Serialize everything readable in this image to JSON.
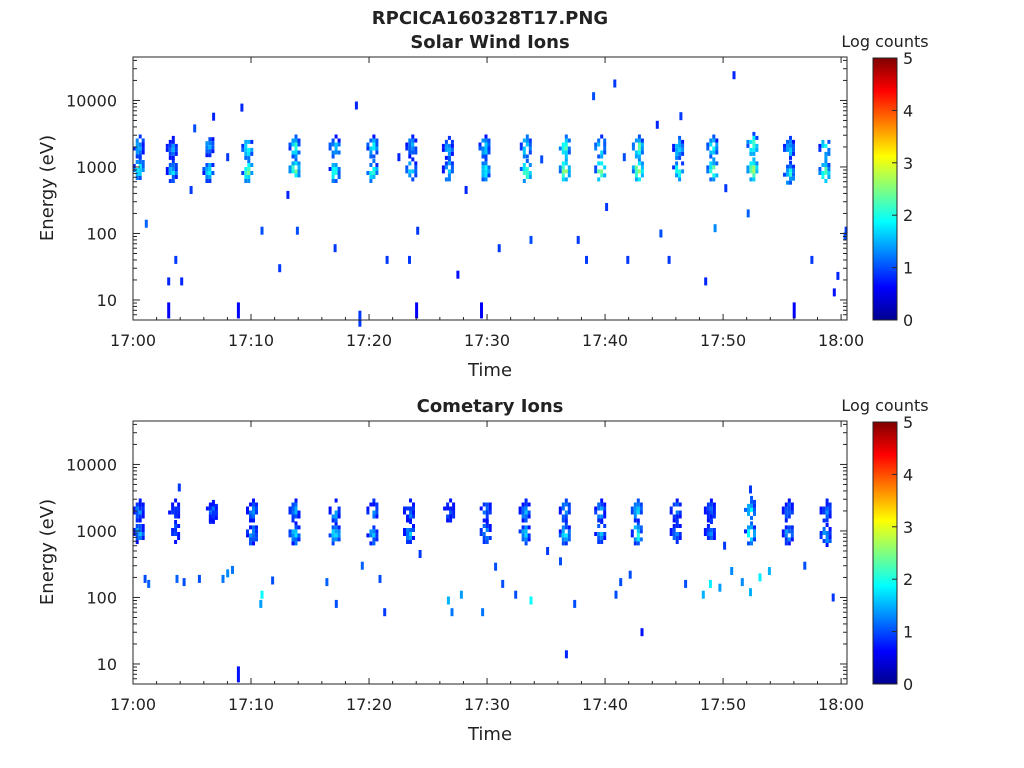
{
  "figure_title": "RPCICA160328T17.PNG",
  "chart_data": [
    {
      "type": "heatmap",
      "title": "Solar Wind Ions",
      "xlabel": "Time",
      "ylabel": "Energy (eV)",
      "y_scale": "log",
      "ylim": [
        5,
        45000
      ],
      "x_minutes_range": [
        0,
        60.5
      ],
      "x_tick_labels": [
        "17:00",
        "17:10",
        "17:20",
        "17:30",
        "17:40",
        "17:50",
        "18:00"
      ],
      "y_tick_labels": [
        "10",
        "100",
        "1000",
        "10000"
      ],
      "colorbar": {
        "label": "Log counts",
        "range": [
          0,
          5
        ],
        "tick_labels": [
          "0",
          "1",
          "2",
          "3",
          "4",
          "5"
        ],
        "colormap": "jet"
      },
      "clusters": [
        {
          "t": 0.4,
          "e_low": 1000,
          "e_high": 2100,
          "peak": 2.1
        },
        {
          "t": 3.2,
          "e_low": 900,
          "e_high": 2000,
          "peak": 1.8
        },
        {
          "t": 6.3,
          "e_low": 900,
          "e_high": 2200,
          "peak": 2.0
        },
        {
          "t": 9.6,
          "e_low": 900,
          "e_high": 2000,
          "peak": 2.6
        },
        {
          "t": 13.6,
          "e_low": 950,
          "e_high": 2100,
          "peak": 2.7
        },
        {
          "t": 17.0,
          "e_low": 900,
          "e_high": 2100,
          "peak": 2.3
        },
        {
          "t": 20.2,
          "e_low": 900,
          "e_high": 2100,
          "peak": 2.4
        },
        {
          "t": 23.5,
          "e_low": 950,
          "e_high": 2100,
          "peak": 2.0
        },
        {
          "t": 26.6,
          "e_low": 950,
          "e_high": 2000,
          "peak": 1.9
        },
        {
          "t": 29.7,
          "e_low": 950,
          "e_high": 2100,
          "peak": 2.2
        },
        {
          "t": 33.2,
          "e_low": 900,
          "e_high": 2100,
          "peak": 2.6
        },
        {
          "t": 36.5,
          "e_low": 950,
          "e_high": 2100,
          "peak": 3.0
        },
        {
          "t": 39.5,
          "e_low": 950,
          "e_high": 2100,
          "peak": 2.8
        },
        {
          "t": 42.7,
          "e_low": 950,
          "e_high": 2100,
          "peak": 3.0
        },
        {
          "t": 46.1,
          "e_low": 950,
          "e_high": 2000,
          "peak": 2.4
        },
        {
          "t": 49.0,
          "e_low": 950,
          "e_high": 2100,
          "peak": 2.6
        },
        {
          "t": 52.4,
          "e_low": 950,
          "e_high": 2300,
          "peak": 3.0
        },
        {
          "t": 55.5,
          "e_low": 850,
          "e_high": 2000,
          "peak": 2.2
        },
        {
          "t": 58.5,
          "e_low": 900,
          "e_high": 2000,
          "peak": 2.6
        }
      ],
      "sparse_points": [
        {
          "t": 2.9,
          "e": 8,
          "v": 0.6
        },
        {
          "t": 8.8,
          "e": 8,
          "v": 0.6
        },
        {
          "t": 23.9,
          "e": 8,
          "v": 0.6
        },
        {
          "t": 29.4,
          "e": 8,
          "v": 0.6
        },
        {
          "t": 55.9,
          "e": 8,
          "v": 0.6
        },
        {
          "t": 59.3,
          "e": 13,
          "v": 0.7
        },
        {
          "t": 2.9,
          "e": 19,
          "v": 0.8
        },
        {
          "t": 4.0,
          "e": 19,
          "v": 0.8
        },
        {
          "t": 27.4,
          "e": 24,
          "v": 0.7
        },
        {
          "t": 48.4,
          "e": 19,
          "v": 0.8
        },
        {
          "t": 59.6,
          "e": 23,
          "v": 0.8
        },
        {
          "t": 3.5,
          "e": 40,
          "v": 0.9
        },
        {
          "t": 1.0,
          "e": 140,
          "v": 1.1
        },
        {
          "t": 10.8,
          "e": 110,
          "v": 1.0
        },
        {
          "t": 13.8,
          "e": 110,
          "v": 1.0
        },
        {
          "t": 24.0,
          "e": 110,
          "v": 0.9
        },
        {
          "t": 33.6,
          "e": 80,
          "v": 1.0
        },
        {
          "t": 37.6,
          "e": 80,
          "v": 0.9
        },
        {
          "t": 44.6,
          "e": 100,
          "v": 1.0
        },
        {
          "t": 49.2,
          "e": 120,
          "v": 1.3
        },
        {
          "t": 52.0,
          "e": 200,
          "v": 1.1
        },
        {
          "t": 60.2,
          "e": 90,
          "v": 1.0
        },
        {
          "t": 60.3,
          "e": 110,
          "v": 0.9
        },
        {
          "t": 4.8,
          "e": 450,
          "v": 0.9
        },
        {
          "t": 13.0,
          "e": 380,
          "v": 0.8
        },
        {
          "t": 28.1,
          "e": 450,
          "v": 0.8
        },
        {
          "t": 40.0,
          "e": 250,
          "v": 0.9
        },
        {
          "t": 50.1,
          "e": 480,
          "v": 0.9
        },
        {
          "t": 5.1,
          "e": 3800,
          "v": 1.0
        },
        {
          "t": 6.7,
          "e": 5700,
          "v": 0.8
        },
        {
          "t": 9.1,
          "e": 7800,
          "v": 0.8
        },
        {
          "t": 18.8,
          "e": 8400,
          "v": 0.8
        },
        {
          "t": 40.7,
          "e": 18000,
          "v": 0.9
        },
        {
          "t": 50.8,
          "e": 24000,
          "v": 0.8
        },
        {
          "t": 38.9,
          "e": 11600,
          "v": 1.0
        },
        {
          "t": 44.3,
          "e": 4300,
          "v": 0.8
        },
        {
          "t": 46.3,
          "e": 5800,
          "v": 0.9
        },
        {
          "t": 34.5,
          "e": 1300,
          "v": 1.0
        },
        {
          "t": 22.4,
          "e": 1400,
          "v": 0.8
        },
        {
          "t": 7.9,
          "e": 1400,
          "v": 0.9
        },
        {
          "t": 41.5,
          "e": 1400,
          "v": 1.0
        },
        {
          "t": 12.3,
          "e": 30,
          "v": 0.9
        },
        {
          "t": 17.0,
          "e": 60,
          "v": 0.9
        },
        {
          "t": 21.4,
          "e": 40,
          "v": 0.9
        },
        {
          "t": 23.3,
          "e": 40,
          "v": 0.9
        },
        {
          "t": 30.9,
          "e": 60,
          "v": 0.9
        },
        {
          "t": 38.3,
          "e": 40,
          "v": 0.9
        },
        {
          "t": 41.8,
          "e": 40,
          "v": 0.9
        },
        {
          "t": 45.3,
          "e": 40,
          "v": 0.9
        },
        {
          "t": 57.4,
          "e": 40,
          "v": 0.9
        },
        {
          "t": 19.1,
          "e": 6,
          "v": 0.9
        }
      ]
    },
    {
      "type": "heatmap",
      "title": "Cometary Ions",
      "xlabel": "Time",
      "ylabel": "Energy (eV)",
      "y_scale": "log",
      "ylim": [
        5,
        45000
      ],
      "x_minutes_range": [
        0,
        60.5
      ],
      "x_tick_labels": [
        "17:00",
        "17:10",
        "17:20",
        "17:30",
        "17:40",
        "17:50",
        "18:00"
      ],
      "y_tick_labels": [
        "10",
        "100",
        "1000",
        "10000"
      ],
      "colorbar": {
        "label": "Log counts",
        "range": [
          0,
          5
        ],
        "tick_labels": [
          "0",
          "1",
          "2",
          "3",
          "4",
          "5"
        ],
        "colormap": "jet"
      },
      "clusters": [
        {
          "t": 0.4,
          "e_low": 1000,
          "e_high": 2100,
          "peak": 1.6
        },
        {
          "t": 3.4,
          "e_low": 1000,
          "e_high": 2100,
          "peak": 1.3
        },
        {
          "t": 6.6,
          "e_low": 2000,
          "e_high": 2100,
          "peak": 1.4
        },
        {
          "t": 10.0,
          "e_low": 950,
          "e_high": 2100,
          "peak": 1.6
        },
        {
          "t": 13.6,
          "e_low": 950,
          "e_high": 2100,
          "peak": 1.8
        },
        {
          "t": 17.0,
          "e_low": 950,
          "e_high": 2100,
          "peak": 2.0
        },
        {
          "t": 20.2,
          "e_low": 950,
          "e_high": 2100,
          "peak": 1.7
        },
        {
          "t": 23.3,
          "e_low": 1000,
          "e_high": 2100,
          "peak": 1.6
        },
        {
          "t": 26.7,
          "e_low": 2100,
          "e_high": 2100,
          "peak": 1.2
        },
        {
          "t": 29.8,
          "e_low": 1000,
          "e_high": 2100,
          "peak": 1.5
        },
        {
          "t": 33.1,
          "e_low": 950,
          "e_high": 2100,
          "peak": 1.8
        },
        {
          "t": 36.5,
          "e_low": 950,
          "e_high": 2100,
          "peak": 1.9
        },
        {
          "t": 39.5,
          "e_low": 1000,
          "e_high": 2100,
          "peak": 1.8
        },
        {
          "t": 42.6,
          "e_low": 950,
          "e_high": 2100,
          "peak": 2.2
        },
        {
          "t": 45.9,
          "e_low": 1000,
          "e_high": 2100,
          "peak": 1.6
        },
        {
          "t": 48.8,
          "e_low": 1000,
          "e_high": 2100,
          "peak": 1.5
        },
        {
          "t": 52.2,
          "e_low": 950,
          "e_high": 2300,
          "peak": 2.3
        },
        {
          "t": 55.4,
          "e_low": 950,
          "e_high": 2100,
          "peak": 1.6
        },
        {
          "t": 58.6,
          "e_low": 900,
          "e_high": 2100,
          "peak": 1.7
        }
      ],
      "sparse_points": [
        {
          "t": 8.8,
          "e": 8,
          "v": 0.7
        },
        {
          "t": 36.6,
          "e": 14,
          "v": 0.8
        },
        {
          "t": 43.0,
          "e": 30,
          "v": 0.7
        },
        {
          "t": 0.9,
          "e": 190,
          "v": 1.0
        },
        {
          "t": 1.2,
          "e": 160,
          "v": 1.1
        },
        {
          "t": 3.6,
          "e": 190,
          "v": 1.1
        },
        {
          "t": 4.2,
          "e": 170,
          "v": 1.0
        },
        {
          "t": 5.5,
          "e": 190,
          "v": 1.0
        },
        {
          "t": 7.5,
          "e": 190,
          "v": 1.2
        },
        {
          "t": 7.9,
          "e": 230,
          "v": 1.3
        },
        {
          "t": 8.3,
          "e": 260,
          "v": 1.2
        },
        {
          "t": 10.8,
          "e": 110,
          "v": 1.9
        },
        {
          "t": 10.7,
          "e": 80,
          "v": 1.4
        },
        {
          "t": 11.7,
          "e": 180,
          "v": 1.0
        },
        {
          "t": 16.3,
          "e": 170,
          "v": 1.1
        },
        {
          "t": 17.1,
          "e": 80,
          "v": 1.0
        },
        {
          "t": 19.3,
          "e": 300,
          "v": 1.1
        },
        {
          "t": 20.8,
          "e": 190,
          "v": 1.0
        },
        {
          "t": 21.2,
          "e": 60,
          "v": 0.9
        },
        {
          "t": 26.6,
          "e": 90,
          "v": 1.5
        },
        {
          "t": 26.9,
          "e": 60,
          "v": 1.2
        },
        {
          "t": 27.7,
          "e": 110,
          "v": 1.4
        },
        {
          "t": 29.5,
          "e": 60,
          "v": 1.2
        },
        {
          "t": 31.2,
          "e": 160,
          "v": 1.0
        },
        {
          "t": 32.3,
          "e": 110,
          "v": 1.0
        },
        {
          "t": 33.6,
          "e": 90,
          "v": 1.9
        },
        {
          "t": 36.1,
          "e": 350,
          "v": 1.0
        },
        {
          "t": 37.3,
          "e": 80,
          "v": 1.0
        },
        {
          "t": 40.8,
          "e": 110,
          "v": 1.0
        },
        {
          "t": 41.2,
          "e": 170,
          "v": 1.0
        },
        {
          "t": 42.0,
          "e": 220,
          "v": 1.0
        },
        {
          "t": 46.7,
          "e": 160,
          "v": 1.0
        },
        {
          "t": 48.2,
          "e": 110,
          "v": 1.5
        },
        {
          "t": 48.8,
          "e": 160,
          "v": 1.8
        },
        {
          "t": 49.6,
          "e": 140,
          "v": 1.4
        },
        {
          "t": 50.6,
          "e": 250,
          "v": 1.3
        },
        {
          "t": 51.5,
          "e": 170,
          "v": 1.3
        },
        {
          "t": 52.2,
          "e": 120,
          "v": 1.5
        },
        {
          "t": 53.0,
          "e": 200,
          "v": 1.8
        },
        {
          "t": 53.8,
          "e": 250,
          "v": 1.5
        },
        {
          "t": 56.8,
          "e": 300,
          "v": 1.0
        },
        {
          "t": 59.2,
          "e": 100,
          "v": 0.9
        },
        {
          "t": 3.8,
          "e": 4500,
          "v": 0.9
        },
        {
          "t": 52.2,
          "e": 4200,
          "v": 0.9
        },
        {
          "t": 24.2,
          "e": 450,
          "v": 0.9
        },
        {
          "t": 30.6,
          "e": 290,
          "v": 1.0
        },
        {
          "t": 35.0,
          "e": 500,
          "v": 0.9
        },
        {
          "t": 50.0,
          "e": 600,
          "v": 0.9
        }
      ]
    }
  ]
}
